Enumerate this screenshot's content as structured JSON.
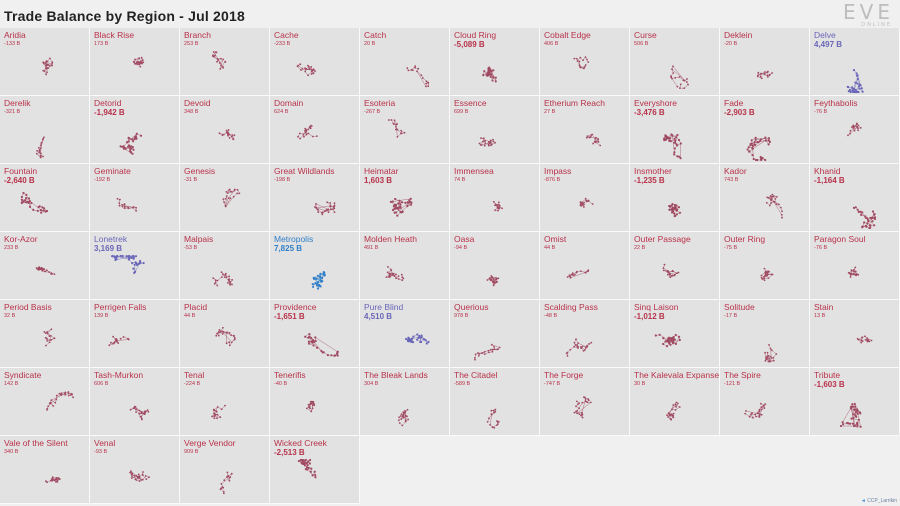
{
  "title": "Trade Balance by Region - Jul 2018",
  "logo": {
    "main": "EVE",
    "sub": "ONLINE"
  },
  "credit": "CCP_Larrikin",
  "colors": {
    "deficit": "#b8324a",
    "surplus": "#6a66b8",
    "metropolis": "#2f7fc9",
    "neutral_map": "#a04a62"
  },
  "chart_data": {
    "type": "small-multiples-map",
    "unit": "B",
    "regions": [
      {
        "name": "Aridia",
        "value": -133
      },
      {
        "name": "Black Rise",
        "value": 173
      },
      {
        "name": "Branch",
        "value": 253
      },
      {
        "name": "Cache",
        "value": -233
      },
      {
        "name": "Catch",
        "value": 20
      },
      {
        "name": "Cloud Ring",
        "value": -5089
      },
      {
        "name": "Cobalt Edge",
        "value": 406
      },
      {
        "name": "Curse",
        "value": 506
      },
      {
        "name": "Deklein",
        "value": -20
      },
      {
        "name": "Delve",
        "value": 4497
      },
      {
        "name": "Derelik",
        "value": -321
      },
      {
        "name": "Detorid",
        "value": -1942
      },
      {
        "name": "Devoid",
        "value": 348
      },
      {
        "name": "Domain",
        "value": 624
      },
      {
        "name": "Esoteria",
        "value": -267
      },
      {
        "name": "Essence",
        "value": 699
      },
      {
        "name": "Etherium Reach",
        "value": 27
      },
      {
        "name": "Everyshore",
        "value": -3476
      },
      {
        "name": "Fade",
        "value": -2903
      },
      {
        "name": "Feythabolis",
        "value": -76
      },
      {
        "name": "Fountain",
        "value": -2640
      },
      {
        "name": "Geminate",
        "value": -192
      },
      {
        "name": "Genesis",
        "value": -31
      },
      {
        "name": "Great Wildlands",
        "value": -198
      },
      {
        "name": "Heimatar",
        "value": 1603
      },
      {
        "name": "Immensea",
        "value": 74
      },
      {
        "name": "Impass",
        "value": -876
      },
      {
        "name": "Insmother",
        "value": -1235
      },
      {
        "name": "Kador",
        "value": 743
      },
      {
        "name": "Khanid",
        "value": -1164
      },
      {
        "name": "Kor-Azor",
        "value": 233
      },
      {
        "name": "Lonetrek",
        "value": 3169
      },
      {
        "name": "Malpais",
        "value": -53
      },
      {
        "name": "Metropolis",
        "value": 7825
      },
      {
        "name": "Molden Heath",
        "value": 491
      },
      {
        "name": "Oasa",
        "value": -94
      },
      {
        "name": "Omist",
        "value": 44
      },
      {
        "name": "Outer Passage",
        "value": 22
      },
      {
        "name": "Outer Ring",
        "value": -75
      },
      {
        "name": "Paragon Soul",
        "value": -76
      },
      {
        "name": "Period Basis",
        "value": 32
      },
      {
        "name": "Perrigen Falls",
        "value": 139
      },
      {
        "name": "Placid",
        "value": 44
      },
      {
        "name": "Providence",
        "value": -1651
      },
      {
        "name": "Pure Blind",
        "value": 4510
      },
      {
        "name": "Querious",
        "value": 978
      },
      {
        "name": "Scalding Pass",
        "value": -48
      },
      {
        "name": "Sinq Laison",
        "value": -1012
      },
      {
        "name": "Solitude",
        "value": -17
      },
      {
        "name": "Stain",
        "value": 13
      },
      {
        "name": "Syndicate",
        "value": 142
      },
      {
        "name": "Tash-Murkon",
        "value": 606
      },
      {
        "name": "Tenal",
        "value": -224
      },
      {
        "name": "Tenerifis",
        "value": -40
      },
      {
        "name": "The Bleak Lands",
        "value": 304
      },
      {
        "name": "The Citadel",
        "value": -589
      },
      {
        "name": "The Forge",
        "value": -747
      },
      {
        "name": "The Kalevala Expanse",
        "value": 30
      },
      {
        "name": "The Spire",
        "value": -121
      },
      {
        "name": "Tribute",
        "value": -1603
      },
      {
        "name": "Vale of the Silent",
        "value": 340
      },
      {
        "name": "Venal",
        "value": -93
      },
      {
        "name": "Verge Vendor",
        "value": 909
      },
      {
        "name": "Wicked Creek",
        "value": -2513
      }
    ]
  }
}
